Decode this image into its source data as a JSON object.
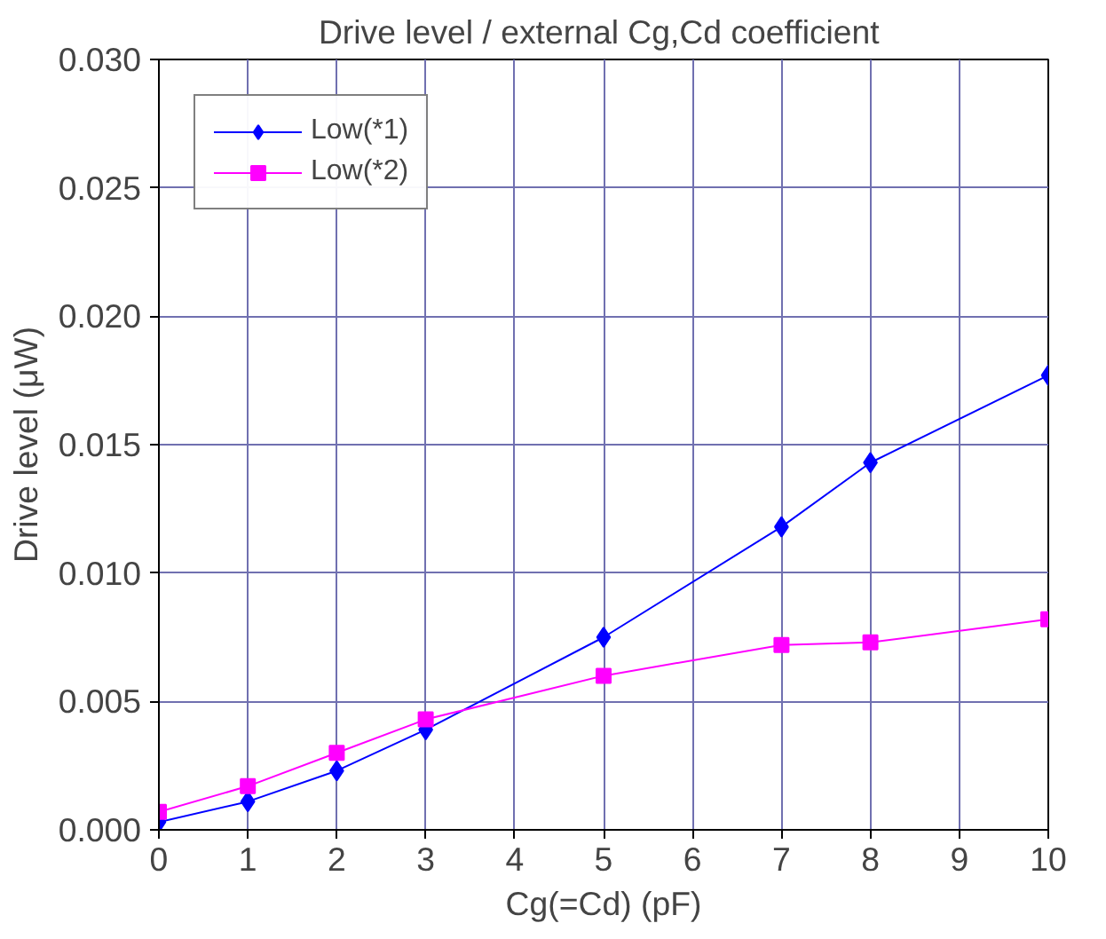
{
  "chart_data": {
    "type": "line",
    "title": "Drive level  / external Cg,Cd coefficient",
    "xlabel": "Cg(=Cd) (pF)",
    "ylabel": "Drive level (μW)",
    "xlim": [
      0,
      10
    ],
    "xticks": [
      0,
      1,
      2,
      3,
      4,
      5,
      6,
      7,
      8,
      9,
      10
    ],
    "ylim": [
      0,
      0.03
    ],
    "yticks": [
      {
        "value": 0,
        "label": "0.000"
      },
      {
        "value": 0.005,
        "label": "0.005"
      },
      {
        "value": 0.01,
        "label": "0.010"
      },
      {
        "value": 0.015,
        "label": "0.015"
      },
      {
        "value": 0.02,
        "label": "0.020"
      },
      {
        "value": 0.025,
        "label": "0.025"
      },
      {
        "value": 0.03,
        "label": "0.030"
      }
    ],
    "grid": true,
    "legend": "top left",
    "line_style": "solid",
    "series": [
      {
        "name": "Low(*1)",
        "color": "#0000ff",
        "marker": "diamond",
        "x": [
          0,
          1,
          2,
          3,
          5,
          7,
          8,
          10
        ],
        "values": [
          0.0003,
          0.0011,
          0.0023,
          0.0039,
          0.0075,
          0.0118,
          0.0143,
          0.0177
        ]
      },
      {
        "name": "Low(*2)",
        "color": "#ff00ff",
        "marker": "square",
        "x": [
          0,
          1,
          2,
          3,
          5,
          7,
          8,
          10
        ],
        "values": [
          0.0007,
          0.0017,
          0.003,
          0.0043,
          0.006,
          0.0072,
          0.0073,
          0.0082
        ]
      }
    ]
  }
}
